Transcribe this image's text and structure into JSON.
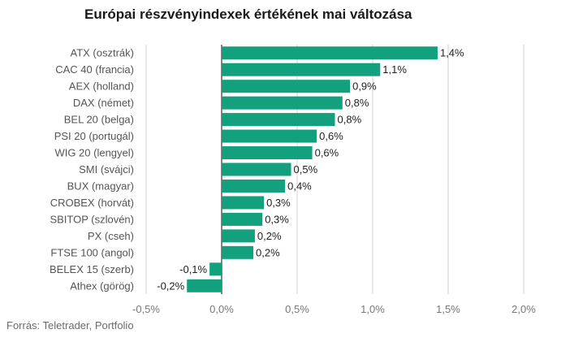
{
  "title": "Európai részvényindexek értékének mai változása",
  "source": "Forrás: Teletrader, Portfolio",
  "colors": {
    "bar": "#13a07c",
    "grid": "#d0d0d0",
    "zero_line": "#333333"
  },
  "chart_data": {
    "type": "bar",
    "orientation": "horizontal",
    "title": "Európai részvényindexek értékének mai változása",
    "categories": [
      "ATX (osztrák)",
      "CAC 40 (francia)",
      "AEX (holland)",
      "DAX (német)",
      "BEL 20 (belga)",
      "PSI 20 (portugál)",
      "WIG 20 (lengyel)",
      "SMI (svájci)",
      "BUX (magyar)",
      "CROBEX (horvát)",
      "SBITOP (szlovén)",
      "PX (cseh)",
      "FTSE 100 (angol)",
      "BELEX 15 (szerb)",
      "Athex (görög)"
    ],
    "values": [
      1.43,
      1.05,
      0.85,
      0.8,
      0.75,
      0.63,
      0.6,
      0.46,
      0.42,
      0.28,
      0.27,
      0.22,
      0.21,
      -0.08,
      -0.23
    ],
    "value_labels": [
      "1,4%",
      "1,1%",
      "0,9%",
      "0,8%",
      "0,8%",
      "0,6%",
      "0,6%",
      "0,5%",
      "0,4%",
      "0,3%",
      "0,3%",
      "0,2%",
      "0,2%",
      "-0,1%",
      "-0,2%"
    ],
    "xlim": [
      -0.5,
      2.0
    ],
    "xticks": [
      -0.5,
      0,
      0.5,
      1.0,
      1.5,
      2.0
    ],
    "xtick_labels": [
      "-0,5%",
      "0,0%",
      "0,5%",
      "1,0%",
      "1,5%",
      "2,0%"
    ],
    "grid": true,
    "legend": "none"
  }
}
